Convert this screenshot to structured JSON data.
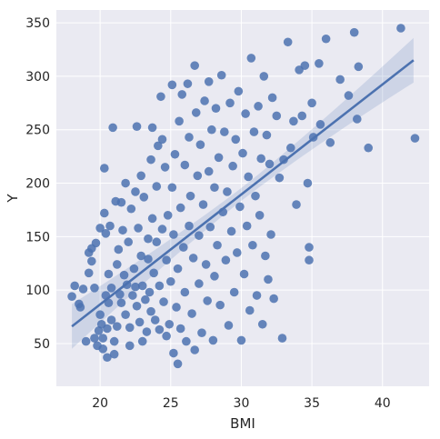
{
  "chart_data": {
    "type": "scatter",
    "xlabel": "BMI",
    "ylabel": "Y",
    "xlim": [
      16.9,
      43.3
    ],
    "ylim": [
      10,
      362
    ],
    "xticks": [
      20,
      25,
      30,
      35,
      40
    ],
    "yticks": [
      50,
      100,
      150,
      200,
      250,
      300,
      350
    ],
    "grid": true,
    "regression": {
      "x": [
        18.0,
        42.2
      ],
      "y": [
        66,
        315
      ]
    },
    "colors": {
      "background": "#eaeaf2",
      "point": "#4c72b0",
      "line": "#4c72b0",
      "band": "#4c72b0",
      "grid": "#ffffff"
    },
    "points": [
      [
        18.0,
        94
      ],
      [
        18.2,
        104
      ],
      [
        18.5,
        87
      ],
      [
        18.6,
        84
      ],
      [
        18.8,
        101
      ],
      [
        19.0,
        52
      ],
      [
        19.2,
        116
      ],
      [
        19.2,
        135
      ],
      [
        19.4,
        139
      ],
      [
        19.4,
        127
      ],
      [
        19.6,
        102
      ],
      [
        19.6,
        55
      ],
      [
        19.7,
        144
      ],
      [
        19.8,
        48
      ],
      [
        19.9,
        62
      ],
      [
        20.0,
        158
      ],
      [
        20.0,
        77
      ],
      [
        20.1,
        68
      ],
      [
        20.2,
        55
      ],
      [
        20.2,
        45
      ],
      [
        20.3,
        214
      ],
      [
        20.3,
        172
      ],
      [
        20.4,
        153
      ],
      [
        20.4,
        95
      ],
      [
        20.5,
        64
      ],
      [
        20.5,
        37
      ],
      [
        20.6,
        115
      ],
      [
        20.6,
        88
      ],
      [
        20.7,
        160
      ],
      [
        20.8,
        102
      ],
      [
        20.8,
        72
      ],
      [
        20.9,
        252
      ],
      [
        21.0,
        52
      ],
      [
        21.0,
        40
      ],
      [
        21.1,
        183
      ],
      [
        21.2,
        124
      ],
      [
        21.2,
        66
      ],
      [
        21.3,
        138
      ],
      [
        21.4,
        96
      ],
      [
        21.5,
        182
      ],
      [
        21.5,
        88
      ],
      [
        21.6,
        156
      ],
      [
        21.7,
        114
      ],
      [
        21.8,
        200
      ],
      [
        21.8,
        77
      ],
      [
        21.9,
        105
      ],
      [
        22.0,
        145
      ],
      [
        22.1,
        65
      ],
      [
        22.1,
        48
      ],
      [
        22.2,
        176
      ],
      [
        22.3,
        95
      ],
      [
        22.4,
        120
      ],
      [
        22.5,
        192
      ],
      [
        22.5,
        103
      ],
      [
        22.6,
        253
      ],
      [
        22.6,
        85
      ],
      [
        22.7,
        158
      ],
      [
        22.8,
        70
      ],
      [
        22.9,
        207
      ],
      [
        22.9,
        132
      ],
      [
        23.0,
        104
      ],
      [
        23.0,
        52
      ],
      [
        23.1,
        187
      ],
      [
        23.2,
        91
      ],
      [
        23.3,
        61
      ],
      [
        23.4,
        148
      ],
      [
        23.4,
        129
      ],
      [
        23.5,
        98
      ],
      [
        23.6,
        222
      ],
      [
        23.6,
        80
      ],
      [
        23.7,
        252
      ],
      [
        23.7,
        167
      ],
      [
        23.8,
        116
      ],
      [
        23.9,
        72
      ],
      [
        24.0,
        197
      ],
      [
        24.0,
        145
      ],
      [
        24.1,
        235
      ],
      [
        24.2,
        63
      ],
      [
        24.2,
        104
      ],
      [
        24.3,
        281
      ],
      [
        24.4,
        241
      ],
      [
        24.4,
        157
      ],
      [
        24.5,
        89
      ],
      [
        24.6,
        215
      ],
      [
        24.7,
        128
      ],
      [
        24.7,
        57
      ],
      [
        24.8,
        170
      ],
      [
        24.9,
        68
      ],
      [
        25.0,
        108
      ],
      [
        25.1,
        292
      ],
      [
        25.1,
        196
      ],
      [
        25.2,
        41
      ],
      [
        25.2,
        152
      ],
      [
        25.3,
        227
      ],
      [
        25.4,
        84
      ],
      [
        25.5,
        31
      ],
      [
        25.5,
        120
      ],
      [
        25.6,
        258
      ],
      [
        25.7,
        177
      ],
      [
        25.7,
        64
      ],
      [
        25.8,
        283
      ],
      [
        25.9,
        140
      ],
      [
        26.0,
        217
      ],
      [
        26.0,
        98
      ],
      [
        26.1,
        52
      ],
      [
        26.2,
        293
      ],
      [
        26.3,
        243
      ],
      [
        26.3,
        160
      ],
      [
        26.4,
        188
      ],
      [
        26.5,
        78
      ],
      [
        26.6,
        130
      ],
      [
        26.7,
        310
      ],
      [
        26.7,
        44
      ],
      [
        26.8,
        266
      ],
      [
        26.9,
        207
      ],
      [
        27.0,
        106
      ],
      [
        27.0,
        151
      ],
      [
        27.1,
        236
      ],
      [
        27.2,
        60
      ],
      [
        27.3,
        180
      ],
      [
        27.4,
        277
      ],
      [
        27.5,
        124
      ],
      [
        27.6,
        90
      ],
      [
        27.7,
        295
      ],
      [
        27.7,
        211
      ],
      [
        27.8,
        159
      ],
      [
        27.9,
        250
      ],
      [
        28.0,
        53
      ],
      [
        28.1,
        196
      ],
      [
        28.1,
        113
      ],
      [
        28.2,
        270
      ],
      [
        28.3,
        142
      ],
      [
        28.4,
        224
      ],
      [
        28.5,
        86
      ],
      [
        28.6,
        301
      ],
      [
        28.7,
        173
      ],
      [
        28.8,
        248
      ],
      [
        28.9,
        128
      ],
      [
        29.0,
        192
      ],
      [
        29.1,
        67
      ],
      [
        29.2,
        275
      ],
      [
        29.3,
        155
      ],
      [
        29.4,
        216
      ],
      [
        29.5,
        98
      ],
      [
        29.6,
        241
      ],
      [
        29.7,
        135
      ],
      [
        29.8,
        286
      ],
      [
        29.9,
        178
      ],
      [
        30.0,
        53
      ],
      [
        30.1,
        228
      ],
      [
        30.2,
        115
      ],
      [
        30.3,
        265
      ],
      [
        30.4,
        160
      ],
      [
        30.5,
        206
      ],
      [
        30.6,
        81
      ],
      [
        30.7,
        317
      ],
      [
        30.8,
        142
      ],
      [
        30.9,
        248
      ],
      [
        31.0,
        188
      ],
      [
        31.1,
        95
      ],
      [
        31.2,
        272
      ],
      [
        31.3,
        170
      ],
      [
        31.4,
        223
      ],
      [
        31.5,
        68
      ],
      [
        31.6,
        300
      ],
      [
        31.7,
        132
      ],
      [
        31.8,
        245
      ],
      [
        31.9,
        110
      ],
      [
        32.0,
        218
      ],
      [
        32.1,
        152
      ],
      [
        32.2,
        280
      ],
      [
        32.3,
        92
      ],
      [
        32.5,
        263
      ],
      [
        32.7,
        205
      ],
      [
        32.9,
        55
      ],
      [
        33.0,
        222
      ],
      [
        33.3,
        332
      ],
      [
        33.5,
        233
      ],
      [
        33.7,
        258
      ],
      [
        33.9,
        180
      ],
      [
        34.1,
        306
      ],
      [
        34.3,
        263
      ],
      [
        34.5,
        310
      ],
      [
        34.7,
        200
      ],
      [
        34.8,
        140
      ],
      [
        34.8,
        128
      ],
      [
        35.0,
        275
      ],
      [
        35.1,
        243
      ],
      [
        35.5,
        312
      ],
      [
        35.6,
        255
      ],
      [
        36.0,
        335
      ],
      [
        36.3,
        238
      ],
      [
        37.0,
        297
      ],
      [
        37.6,
        282
      ],
      [
        38.0,
        341
      ],
      [
        38.2,
        260
      ],
      [
        38.3,
        309
      ],
      [
        39.0,
        233
      ],
      [
        41.3,
        345
      ],
      [
        42.3,
        242
      ]
    ]
  }
}
